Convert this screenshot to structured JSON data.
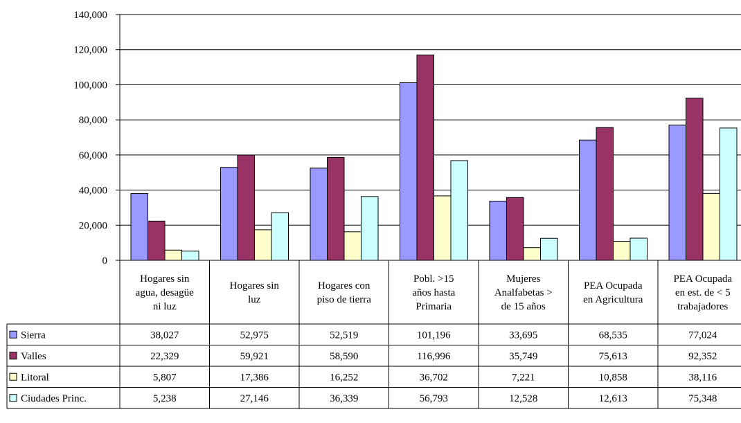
{
  "chart_data": {
    "type": "bar",
    "categories": [
      [
        "Hogares sin",
        "agua, desagüe",
        "ni luz"
      ],
      [
        "Hogares sin",
        "luz"
      ],
      [
        "Hogares con",
        "piso de tierra"
      ],
      [
        "Pobl. >15",
        "años hasta",
        "Primaria"
      ],
      [
        "Mujeres",
        "Analfabetas >",
        "de 15 años"
      ],
      [
        "PEA Ocupada",
        "en Agricultura"
      ],
      [
        "PEA Ocupada",
        "en est. de < 5",
        "trabajadores"
      ]
    ],
    "series": [
      {
        "name": "Sierra",
        "color": "#9999ff",
        "values": [
          38027,
          52975,
          52519,
          101196,
          33695,
          68535,
          77024
        ],
        "labels": [
          "38,027",
          "52,975",
          "52,519",
          "101,196",
          "33,695",
          "68,535",
          "77,024"
        ]
      },
      {
        "name": "Valles",
        "color": "#993366",
        "values": [
          22329,
          59921,
          58590,
          116996,
          35749,
          75613,
          92352
        ],
        "labels": [
          "22,329",
          "59,921",
          "58,590",
          "116,996",
          "35,749",
          "75,613",
          "92,352"
        ]
      },
      {
        "name": "Litoral",
        "color": "#ffffcc",
        "values": [
          5807,
          17386,
          16252,
          36702,
          7221,
          10858,
          38116
        ],
        "labels": [
          "5,807",
          "17,386",
          "16,252",
          "36,702",
          "7,221",
          "10,858",
          "38,116"
        ]
      },
      {
        "name": "Ciudades Princ.",
        "color": "#ccffff",
        "values": [
          5238,
          27146,
          36339,
          56793,
          12528,
          12613,
          75348
        ],
        "labels": [
          "5,238",
          "27,146",
          "36,339",
          "56,793",
          "12,528",
          "12,613",
          "75,348"
        ]
      }
    ],
    "ylim": [
      0,
      140000
    ],
    "yticks": [
      "0",
      "20,000",
      "40,000",
      "60,000",
      "80,000",
      "100,000",
      "120,000",
      "140,000"
    ],
    "grid": true,
    "legend": "data-table"
  }
}
